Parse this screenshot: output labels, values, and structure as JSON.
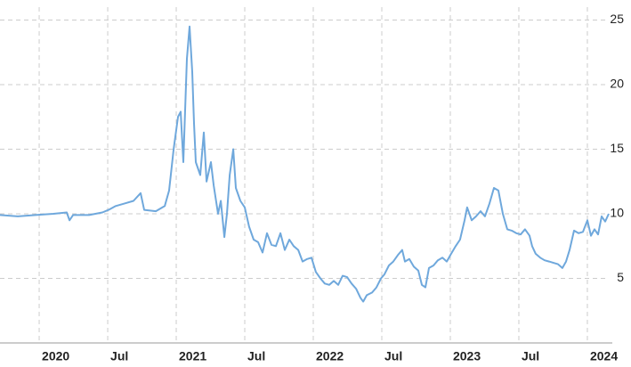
{
  "chart_data": {
    "type": "line",
    "color": "#6fa8dc",
    "grid": true,
    "x": [
      2019.714,
      2019.844,
      2019.974,
      2020.104,
      2020.201,
      2020.221,
      2020.247,
      2020.364,
      2020.461,
      2020.506,
      2020.558,
      2020.623,
      2020.688,
      2020.74,
      2020.766,
      2020.851,
      2020.916,
      2020.948,
      2020.981,
      2021.013,
      2021.032,
      2021.052,
      2021.078,
      2021.097,
      2021.117,
      2021.13,
      2021.143,
      2021.175,
      2021.201,
      2021.221,
      2021.253,
      2021.273,
      2021.305,
      2021.325,
      2021.351,
      2021.37,
      2021.39,
      2021.416,
      2021.435,
      2021.468,
      2021.5,
      2021.532,
      2021.565,
      2021.597,
      2021.63,
      2021.662,
      2021.695,
      2021.727,
      2021.76,
      2021.792,
      2021.825,
      2021.857,
      2021.89,
      2021.922,
      2021.955,
      2021.987,
      2022.019,
      2022.052,
      2022.084,
      2022.117,
      2022.149,
      2022.182,
      2022.214,
      2022.247,
      2022.279,
      2022.312,
      2022.344,
      2022.364,
      2022.39,
      2022.429,
      2022.461,
      2022.494,
      2022.519,
      2022.552,
      2022.584,
      2022.617,
      2022.649,
      2022.669,
      2022.701,
      2022.734,
      2022.766,
      2022.792,
      2022.818,
      2022.844,
      2022.877,
      2022.909,
      2022.942,
      2022.974,
      2023.006,
      2023.039,
      2023.071,
      2023.104,
      2023.123,
      2023.156,
      2023.188,
      2023.221,
      2023.253,
      2023.286,
      2023.318,
      2023.351,
      2023.383,
      2023.416,
      2023.448,
      2023.481,
      2023.513,
      2023.545,
      2023.578,
      2023.597,
      2023.623,
      2023.656,
      2023.688,
      2023.721,
      2023.753,
      2023.786,
      2023.818,
      2023.844,
      2023.87,
      2023.903,
      2023.935,
      2023.968,
      2024.0,
      2024.026,
      2024.052,
      2024.078,
      2024.104,
      2024.13,
      2024.156
    ],
    "values": [
      9.9,
      9.8,
      9.9,
      10.0,
      10.1,
      9.5,
      9.9,
      9.9,
      10.1,
      10.3,
      10.6,
      10.8,
      11.0,
      11.6,
      10.3,
      10.2,
      10.6,
      11.8,
      15,
      17.5,
      17.9,
      14,
      22,
      24.5,
      21,
      17,
      14,
      13,
      16.3,
      12.5,
      14,
      12.2,
      10,
      11,
      8.2,
      10,
      13,
      15,
      12,
      11,
      10.5,
      9,
      8,
      7.8,
      7,
      8.5,
      7.6,
      7.5,
      8.5,
      7.2,
      8,
      7.5,
      7.2,
      6.3,
      6.5,
      6.6,
      5.5,
      5,
      4.6,
      4.5,
      4.8,
      4.5,
      5.2,
      5.1,
      4.6,
      4.2,
      3.5,
      3.2,
      3.7,
      3.9,
      4.3,
      5,
      5.3,
      6,
      6.3,
      6.8,
      7.2,
      6.3,
      6.5,
      5.9,
      5.6,
      4.5,
      4.3,
      5.8,
      6.0,
      6.4,
      6.6,
      6.3,
      6.9,
      7.5,
      8,
      9.5,
      10.5,
      9.5,
      9.8,
      10.2,
      9.8,
      10.8,
      12,
      11.8,
      10,
      8.8,
      8.7,
      8.5,
      8.4,
      8.8,
      8.3,
      7.5,
      6.9,
      6.6,
      6.4,
      6.3,
      6.2,
      6.1,
      5.8,
      6.3,
      7.2,
      8.7,
      8.5,
      8.6,
      9.5,
      8.3,
      8.8,
      8.4,
      9.8,
      9.4,
      10.0
    ],
    "xlim": [
      2019.714,
      2024.182
    ],
    "xticks": [
      {
        "value": 2020,
        "label": "2020"
      },
      {
        "value": 2020.5,
        "label": "Jul"
      },
      {
        "value": 2021,
        "label": "2021"
      },
      {
        "value": 2021.5,
        "label": "Jul"
      },
      {
        "value": 2022,
        "label": "2022"
      },
      {
        "value": 2022.5,
        "label": "Jul"
      },
      {
        "value": 2023,
        "label": "2023"
      },
      {
        "value": 2023.5,
        "label": "Jul"
      },
      {
        "value": 2024,
        "label": "2024"
      }
    ],
    "ylim": [
      0,
      26
    ],
    "yticks": [
      5,
      10,
      15,
      20,
      25
    ]
  }
}
